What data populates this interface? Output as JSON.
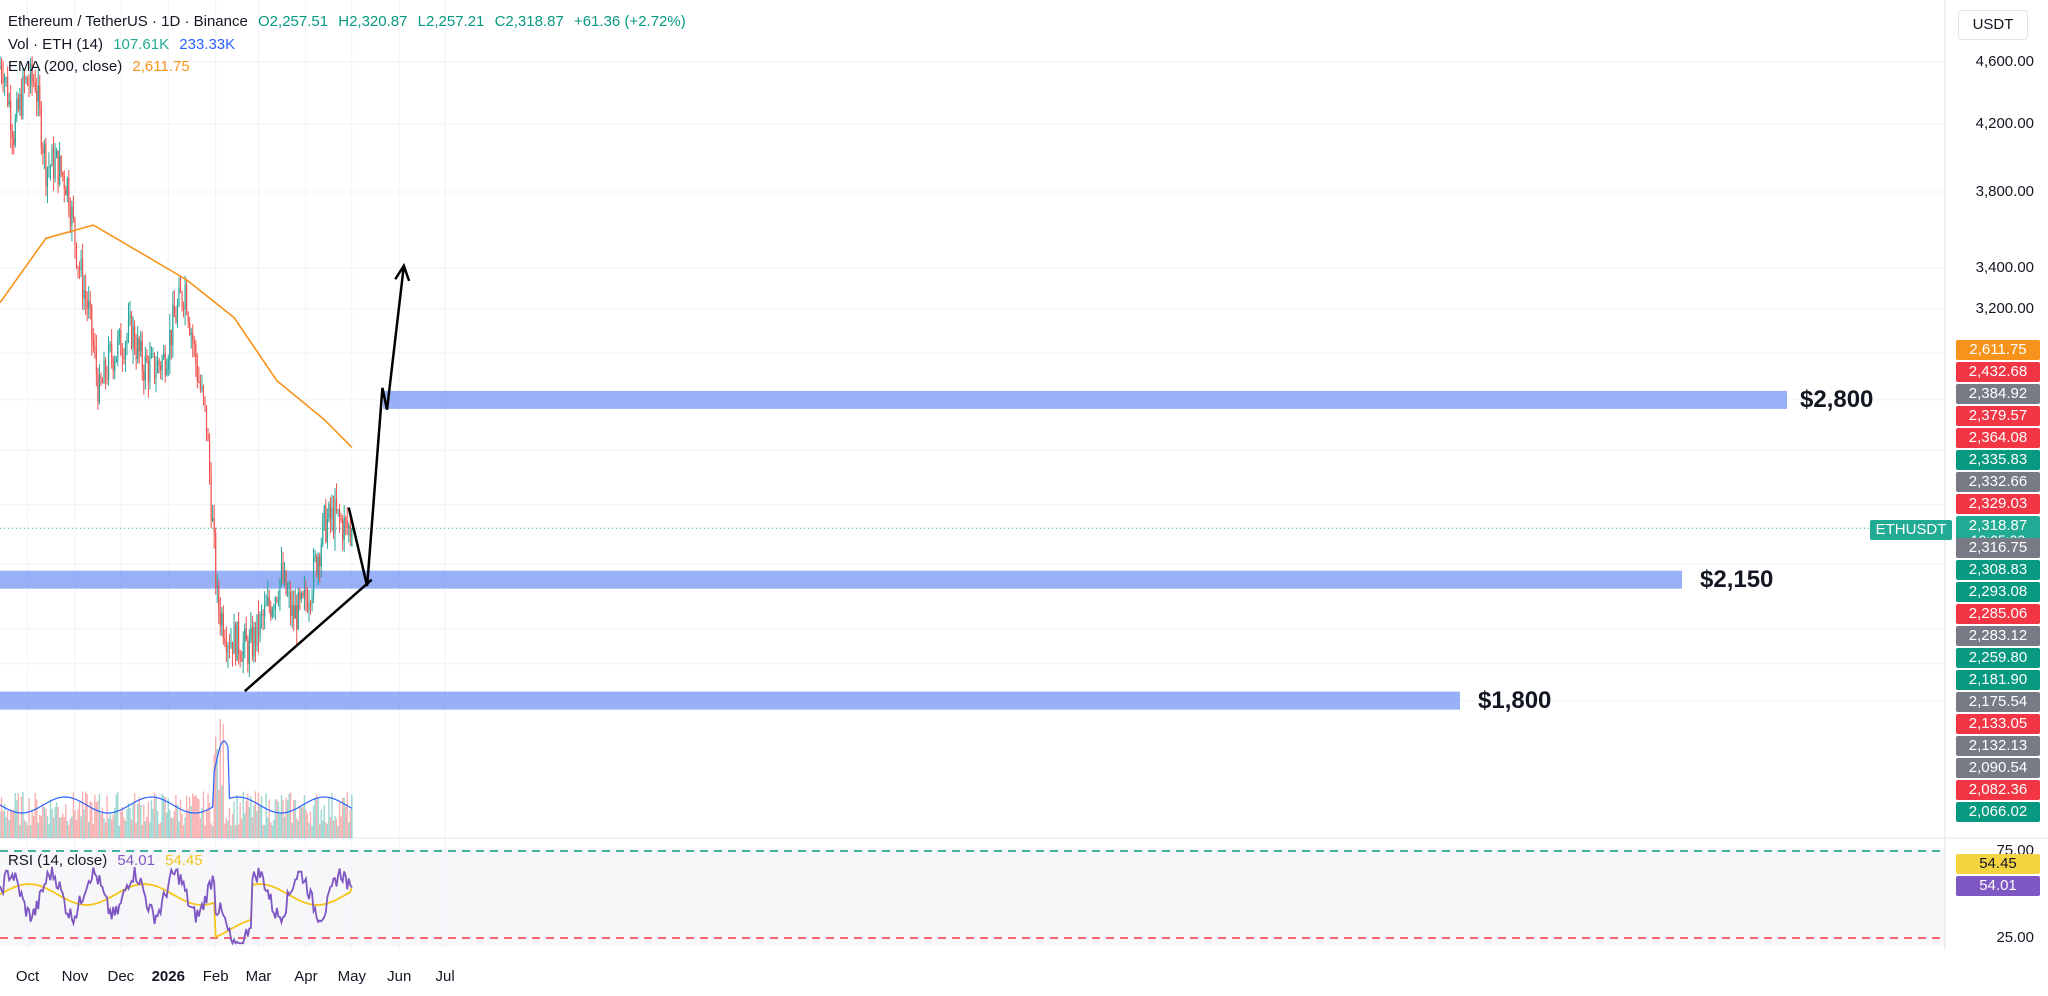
{
  "header": {
    "symbol": "Ethereum / TetherUS · 1D · Binance",
    "open": "O2,257.51",
    "high": "H2,320.87",
    "low": "L2,257.21",
    "close": "C2,318.87",
    "change": "+61.36 (+2.72%)",
    "vol_label": "Vol · ETH (14)",
    "vol_value_1": "107.61K",
    "vol_value_2": "233.33K",
    "ema_label": "EMA (200, close)",
    "ema_value": "2,611.75",
    "rsi_label": "RSI (14, close)",
    "rsi_value_1": "54.01",
    "rsi_value_2": "54.45"
  },
  "currency": "USDT",
  "price_axis_labels": [
    "4,600.00",
    "4,200.00",
    "3,800.00",
    "3,400.00",
    "3,200.00"
  ],
  "rsi_axis_labels": [
    "75.00",
    "25.00"
  ],
  "time_axis_labels": [
    "Oct",
    "Nov",
    "Dec",
    "2026",
    "Feb",
    "Mar",
    "Apr",
    "May",
    "Jun",
    "Jul"
  ],
  "symbol_tag": "ETHUSDT",
  "countdown": "10:05:00",
  "price_labels": [
    {
      "text": "2,611.75",
      "color": "#f7931a"
    },
    {
      "text": "2,432.68",
      "color": "#f23645"
    },
    {
      "text": "2,384.92",
      "color": "#787b86"
    },
    {
      "text": "2,379.57",
      "color": "#f23645"
    },
    {
      "text": "2,364.08",
      "color": "#f23645"
    },
    {
      "text": "2,335.83",
      "color": "#089981"
    },
    {
      "text": "2,332.66",
      "color": "#787b86"
    },
    {
      "text": "2,329.03",
      "color": "#f23645"
    },
    {
      "text": "2,318.87",
      "color": "#22ab94"
    },
    {
      "text": "2,316.75",
      "color": "#787b86"
    },
    {
      "text": "2,308.83",
      "color": "#089981"
    },
    {
      "text": "2,293.08",
      "color": "#089981"
    },
    {
      "text": "2,285.06",
      "color": "#f23645"
    },
    {
      "text": "2,283.12",
      "color": "#787b86"
    },
    {
      "text": "2,259.80",
      "color": "#089981"
    },
    {
      "text": "2,181.90",
      "color": "#089981"
    },
    {
      "text": "2,175.54",
      "color": "#787b86"
    },
    {
      "text": "2,133.05",
      "color": "#f23645"
    },
    {
      "text": "2,132.13",
      "color": "#787b86"
    },
    {
      "text": "2,090.54",
      "color": "#787b86"
    },
    {
      "text": "2,082.36",
      "color": "#f23645"
    },
    {
      "text": "2,066.02",
      "color": "#089981"
    }
  ],
  "rsi_labels": [
    {
      "text": "54.45",
      "color": "#f5d442",
      "textColor": "#131722"
    },
    {
      "text": "54.01",
      "color": "#7e57c2",
      "textColor": "#ffffff"
    }
  ],
  "zones": [
    {
      "label": "$2,800",
      "price": 2800
    },
    {
      "label": "$2,150",
      "price": 2150
    },
    {
      "label": "$1,800",
      "price": 1800
    }
  ],
  "colors": {
    "up": "#26a69a",
    "down": "#ef5350",
    "ema": "#f7931a",
    "zone": "#6b8ff2",
    "rsi": "#7e57c2",
    "rsi_ma": "#f5c518",
    "vol_ma": "#2962ff"
  },
  "chart_data": {
    "type": "candlestick",
    "title": "Ethereum / TetherUS · 1D · Binance",
    "price_scale": "log",
    "ylim": [
      1700,
      4800
    ],
    "x_range": [
      "Sep 13",
      "Jul 14"
    ],
    "grid": true,
    "weekly_closes": [
      {
        "date": "Sep 15",
        "close": 4580
      },
      {
        "date": "Sep 22",
        "close": 4150
      },
      {
        "date": "Sep 29",
        "close": 4450
      },
      {
        "date": "Oct 06",
        "close": 4480
      },
      {
        "date": "Oct 13",
        "close": 3950
      },
      {
        "date": "Oct 20",
        "close": 3960
      },
      {
        "date": "Oct 27",
        "close": 3850
      },
      {
        "date": "Nov 03",
        "close": 3440
      },
      {
        "date": "Nov 10",
        "close": 3180
      },
      {
        "date": "Nov 17",
        "close": 2820
      },
      {
        "date": "Nov 24",
        "close": 2980
      },
      {
        "date": "Dec 01",
        "close": 3040
      },
      {
        "date": "Dec 08",
        "close": 3100
      },
      {
        "date": "Dec 15",
        "close": 2950
      },
      {
        "date": "Dec 22",
        "close": 2930
      },
      {
        "date": "Dec 29",
        "close": 2970
      },
      {
        "date": "Jan 05",
        "close": 3150
      },
      {
        "date": "Jan 12",
        "close": 3310
      },
      {
        "date": "Jan 19",
        "close": 2960
      },
      {
        "date": "Jan 26",
        "close": 2700
      },
      {
        "date": "Feb 02",
        "close": 2080
      },
      {
        "date": "Feb 09",
        "close": 1980
      },
      {
        "date": "Feb 16",
        "close": 1960
      },
      {
        "date": "Feb 23",
        "close": 1940
      },
      {
        "date": "Mar 02",
        "close": 2010
      },
      {
        "date": "Mar 09",
        "close": 2080
      },
      {
        "date": "Mar 16",
        "close": 2160
      },
      {
        "date": "Mar 23",
        "close": 2040
      },
      {
        "date": "Mar 30",
        "close": 2060
      },
      {
        "date": "Apr 06",
        "close": 2170
      },
      {
        "date": "Apr 13",
        "close": 2330
      },
      {
        "date": "Apr 20",
        "close": 2360
      },
      {
        "date": "Apr 27",
        "close": 2318.87
      }
    ],
    "ema200": [
      {
        "date": "Sep 13",
        "value": 3230
      },
      {
        "date": "Oct 13",
        "value": 3550
      },
      {
        "date": "Nov 13",
        "value": 3620
      },
      {
        "date": "Dec 13",
        "value": 3480
      },
      {
        "date": "Jan 13",
        "value": 3340
      },
      {
        "date": "Feb 13",
        "value": 3160
      },
      {
        "date": "Mar 13",
        "value": 2880
      },
      {
        "date": "Apr 13",
        "value": 2720
      },
      {
        "date": "May 01",
        "value": 2611.75
      }
    ],
    "zones": [
      {
        "label": "$2,800",
        "price": 2800
      },
      {
        "label": "$2,150",
        "price": 2150
      },
      {
        "label": "$1,800",
        "price": 1800
      }
    ],
    "rsi": {
      "period": 14,
      "levels": [
        75,
        25
      ],
      "last": 54.01,
      "ma_last": 54.45
    },
    "volume": {
      "last": 107610,
      "ma_last": 233330
    },
    "projection": [
      {
        "date": "Apr 29",
        "price": 2390
      },
      {
        "date": "May 11",
        "price": 2130
      },
      {
        "date": "May 21",
        "price": 2850
      },
      {
        "date": "May 24",
        "price": 2760
      },
      {
        "date": "Jun 04",
        "price": 3410
      }
    ],
    "trendline": [
      {
        "date": "Feb 20",
        "price": 1825
      },
      {
        "date": "May 14",
        "price": 2150
      }
    ]
  }
}
